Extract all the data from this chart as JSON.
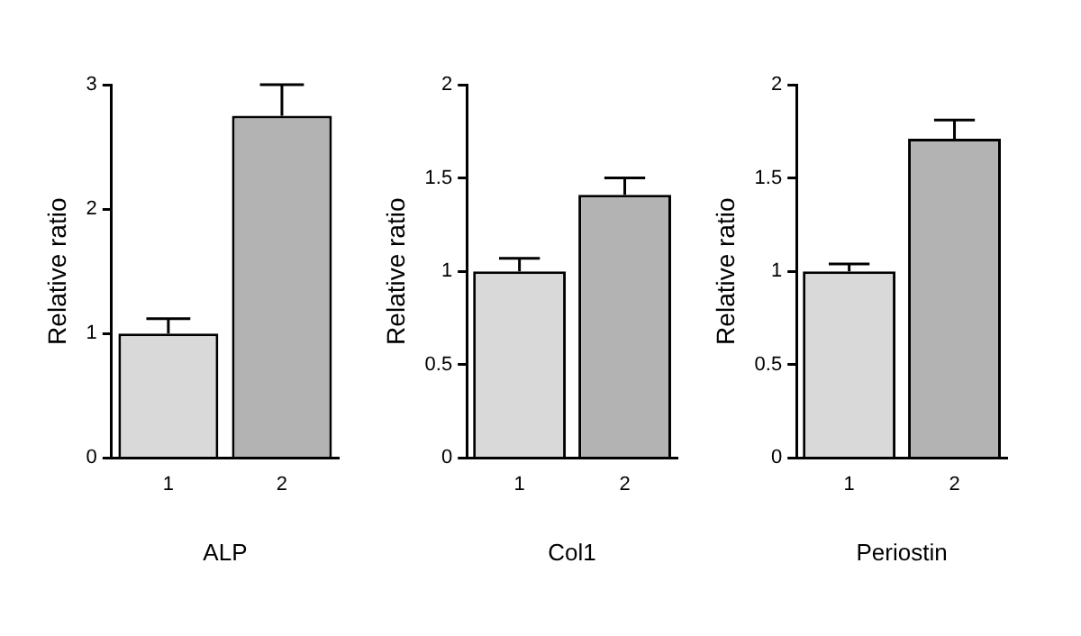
{
  "chart_data": [
    {
      "type": "bar",
      "xlabel": "ALP",
      "ylabel": "Relative ratio",
      "categories": [
        "1",
        "2"
      ],
      "values": [
        1.0,
        2.75
      ],
      "colors": [
        "#d9d9d9",
        "#b3b3b3"
      ],
      "errors": [
        [
          1.0,
          1.12
        ],
        [
          2.75,
          3.0
        ]
      ],
      "ylim": [
        0,
        3
      ],
      "yticks": [
        0,
        1,
        2,
        3
      ],
      "grid": false,
      "legend": false
    },
    {
      "type": "bar",
      "xlabel": "Col1",
      "ylabel": "Relative ratio",
      "categories": [
        "1",
        "2"
      ],
      "values": [
        1.0,
        1.41
      ],
      "colors": [
        "#d9d9d9",
        "#b3b3b3"
      ],
      "errors": [
        [
          1.0,
          1.07
        ],
        [
          1.41,
          1.5
        ]
      ],
      "ylim": [
        0,
        2
      ],
      "yticks": [
        0,
        0.5,
        1,
        1.5,
        2
      ],
      "grid": false,
      "legend": false
    },
    {
      "type": "bar",
      "xlabel": "Periostin",
      "ylabel": "Relative ratio",
      "categories": [
        "1",
        "2"
      ],
      "values": [
        1.0,
        1.71
      ],
      "colors": [
        "#d9d9d9",
        "#b3b3b3"
      ],
      "errors": [
        [
          1.0,
          1.04
        ],
        [
          1.71,
          1.81
        ]
      ],
      "ylim": [
        0,
        2
      ],
      "yticks": [
        0,
        0.5,
        1,
        1.5,
        2
      ],
      "grid": false,
      "legend": false
    }
  ]
}
